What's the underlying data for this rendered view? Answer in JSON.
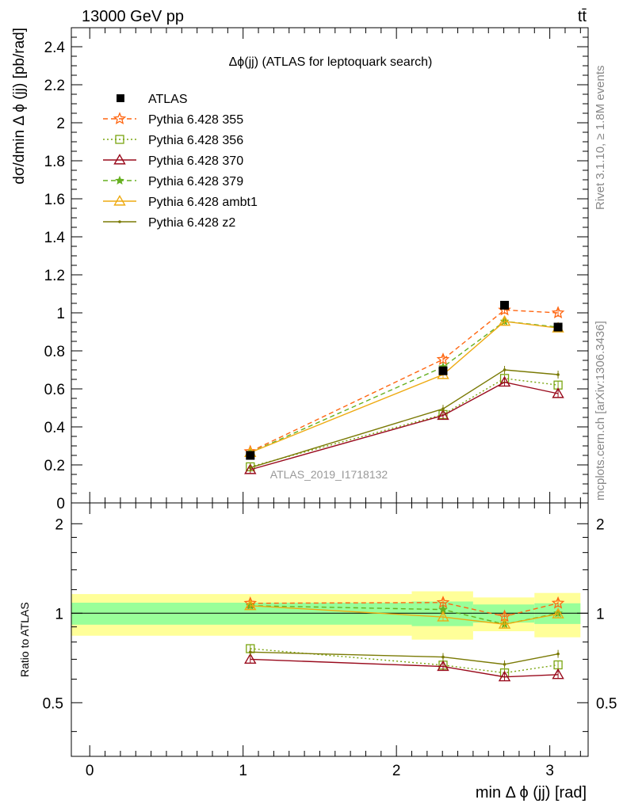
{
  "header": {
    "left": "13000 GeV pp",
    "right": "tt̄"
  },
  "side_text": {
    "rivet": "Rivet 3.1.10, ≥ 1.8M events",
    "mcplots": "mcplots.cern.ch [arXiv:1306.3436]"
  },
  "chart_data": {
    "type": "scatter",
    "title": "Δϕ(jj) (ATLAS for leptoquark search)",
    "watermark": "ATLAS_2019_I1718132",
    "xlabel": "min Δ ϕ (jj) [rad]",
    "ylabel": "dσ/dmin Δ ϕ (jj) [pb/rad]",
    "ratio_ylabel": "Ratio to ATLAS",
    "xlim": [
      -0.12,
      3.25
    ],
    "ylim": [
      0,
      2.5
    ],
    "ratio_ylim": [
      0.33,
      2.35
    ],
    "ratio_scale": "log",
    "x_ticks": [
      "0",
      "1",
      "2",
      "3"
    ],
    "y_ticks": [
      "0",
      "0.2",
      "0.4",
      "0.6",
      "0.8",
      "1",
      "1.2",
      "1.4",
      "1.6",
      "1.8",
      "2",
      "2.2",
      "2.4"
    ],
    "ratio_y_ticks": [
      "0.5",
      "1",
      "2"
    ],
    "legend_position": "top-left",
    "x": [
      1.047,
      2.304,
      2.705,
      3.054
    ],
    "bin_edges": [
      -0.12,
      2.1,
      2.5,
      2.9,
      3.2
    ],
    "band_inner": [
      0.085,
      0.095,
      0.07,
      0.08
    ],
    "band_outer": [
      0.16,
      0.185,
      0.13,
      0.17
    ],
    "data": {
      "name": "ATLAS",
      "values": [
        0.25,
        0.695,
        1.04,
        0.925
      ],
      "color": "#000000"
    },
    "series": [
      {
        "name": "Pythia 6.428 355",
        "values": [
          0.27,
          0.755,
          1.015,
          1.0
        ],
        "color": "#ff6611",
        "dash": "6,4",
        "marker": "star"
      },
      {
        "name": "Pythia 6.428 356",
        "values": [
          0.19,
          0.465,
          0.655,
          0.62
        ],
        "color": "#7aa510",
        "dash": "2,3",
        "marker": "square"
      },
      {
        "name": "Pythia 6.428 370",
        "values": [
          0.175,
          0.46,
          0.635,
          0.575
        ],
        "color": "#990a1c",
        "dash": "",
        "marker": "triangle"
      },
      {
        "name": "Pythia 6.428 379",
        "values": [
          0.265,
          0.715,
          0.955,
          0.925
        ],
        "color": "#66b020",
        "dash": "6,4",
        "marker": "smallstar"
      },
      {
        "name": "Pythia 6.428 ambt1",
        "values": [
          0.265,
          0.675,
          0.955,
          0.92
        ],
        "color": "#eeaa11",
        "dash": "",
        "marker": "triangle"
      },
      {
        "name": "Pythia 6.428 z2",
        "values": [
          0.185,
          0.495,
          0.7,
          0.675
        ],
        "color": "#7a7a05",
        "dash": "",
        "marker": "dot"
      }
    ]
  },
  "colors": {
    "band_inner": "#99ff99",
    "band_outer": "#ffff99",
    "axis": "#000000",
    "side_text": "#888888"
  }
}
